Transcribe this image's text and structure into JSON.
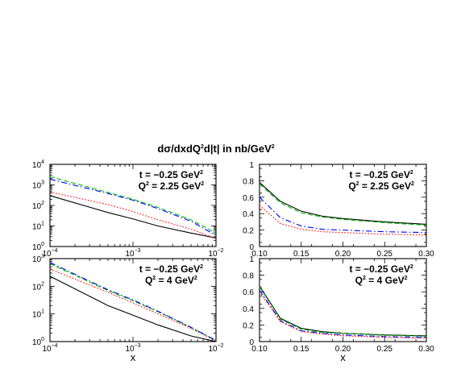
{
  "figure": {
    "title_main": "dσ/dxdQ",
    "title_sup": "2",
    "title_mid": "d|t| in nb/GeV",
    "title_sup2": "2"
  },
  "chart_data": [
    {
      "type": "line",
      "panel": "top-left",
      "xscale": "log",
      "yscale": "log",
      "xlim": [
        0.0001,
        0.01
      ],
      "ylim": [
        1,
        10000
      ],
      "xlabel": "",
      "xticks": [
        {
          "v": 0.0001,
          "b": "10",
          "e": "−4"
        },
        {
          "v": 0.001,
          "b": "10",
          "e": "−3"
        },
        {
          "v": 0.01,
          "b": "10",
          "e": "−2"
        }
      ],
      "yticks": [
        {
          "v": 1,
          "b": "10",
          "e": "0"
        },
        {
          "v": 10,
          "b": "10",
          "e": "1"
        },
        {
          "v": 100,
          "b": "10",
          "e": "2"
        },
        {
          "v": 1000,
          "b": "10",
          "e": "3"
        },
        {
          "v": 10000,
          "b": "10",
          "e": "4"
        }
      ],
      "annotation": {
        "t_main": "t = −0.25 GeV",
        "t_sup": "2",
        "q_pre": "Q",
        "q_sup": "2",
        "q_main": " = 2.25 GeV",
        "q_sup2": "2"
      },
      "series": [
        {
          "color": "#000000",
          "style": "solid",
          "x": [
            0.0001,
            0.0005,
            0.001,
            0.002,
            0.005,
            0.01
          ],
          "y": [
            300,
            45,
            22,
            10,
            4.5,
            2.6
          ]
        },
        {
          "color": "#ff0000",
          "style": "dotted",
          "x": [
            0.0001,
            0.0005,
            0.001,
            0.002,
            0.005,
            0.01
          ],
          "y": [
            450,
            110,
            50,
            20,
            7,
            2.4
          ]
        },
        {
          "color": "#00bb00",
          "style": "dashed",
          "x": [
            0.0001,
            0.0005,
            0.001,
            0.002,
            0.005,
            0.01
          ],
          "y": [
            2500,
            430,
            200,
            80,
            20,
            4.5
          ]
        },
        {
          "color": "#0000ff",
          "style": "dashdot",
          "x": [
            0.0001,
            0.0005,
            0.001,
            0.002,
            0.005,
            0.01
          ],
          "y": [
            1900,
            380,
            180,
            70,
            17,
            3.5
          ]
        }
      ]
    },
    {
      "type": "line",
      "panel": "top-right",
      "xscale": "linear",
      "yscale": "linear",
      "xlim": [
        0.1,
        0.3
      ],
      "ylim": [
        0,
        1
      ],
      "xlabel": "",
      "xticks": [
        {
          "v": 0.1,
          "b": "0.10"
        },
        {
          "v": 0.15,
          "b": "0.15"
        },
        {
          "v": 0.2,
          "b": "0.20"
        },
        {
          "v": 0.25,
          "b": "0.25"
        },
        {
          "v": 0.3,
          "b": "0.30"
        }
      ],
      "yticks": [
        {
          "v": 0,
          "b": "0"
        },
        {
          "v": 0.2,
          "b": "0.2"
        },
        {
          "v": 0.4,
          "b": "0.4"
        },
        {
          "v": 0.6,
          "b": "0.6"
        },
        {
          "v": 0.8,
          "b": "0.8"
        },
        {
          "v": 1,
          "b": "1"
        }
      ],
      "annotation": {
        "t_main": "t = −0.25 GeV",
        "t_sup": "2",
        "q_pre": "Q",
        "q_sup": "2",
        "q_main": " = 2.25 GeV",
        "q_sup2": "2"
      },
      "series": [
        {
          "color": "#000000",
          "style": "solid",
          "x": [
            0.1,
            0.125,
            0.15,
            0.175,
            0.2,
            0.25,
            0.3
          ],
          "y": [
            0.78,
            0.55,
            0.43,
            0.37,
            0.34,
            0.3,
            0.27
          ]
        },
        {
          "color": "#00bb00",
          "style": "dashed",
          "x": [
            0.1,
            0.125,
            0.15,
            0.175,
            0.2,
            0.25,
            0.3
          ],
          "y": [
            0.76,
            0.53,
            0.41,
            0.36,
            0.33,
            0.29,
            0.26
          ]
        },
        {
          "color": "#0000ff",
          "style": "dashdot",
          "x": [
            0.1,
            0.125,
            0.15,
            0.175,
            0.2,
            0.25,
            0.3
          ],
          "y": [
            0.6,
            0.35,
            0.25,
            0.21,
            0.2,
            0.18,
            0.17
          ]
        },
        {
          "color": "#ff0000",
          "style": "dotted",
          "x": [
            0.1,
            0.125,
            0.15,
            0.175,
            0.2,
            0.25,
            0.3
          ],
          "y": [
            0.5,
            0.28,
            0.21,
            0.18,
            0.17,
            0.15,
            0.14
          ]
        }
      ]
    },
    {
      "type": "line",
      "panel": "bottom-left",
      "xscale": "log",
      "yscale": "log",
      "xlim": [
        0.0001,
        0.01
      ],
      "ylim": [
        1,
        1000
      ],
      "xlabel": "x",
      "xticks": [
        {
          "v": 0.0001,
          "b": "10",
          "e": "−4"
        },
        {
          "v": 0.001,
          "b": "10",
          "e": "−3"
        },
        {
          "v": 0.01,
          "b": "10",
          "e": "−2"
        }
      ],
      "yticks": [
        {
          "v": 1,
          "b": "10",
          "e": "0"
        },
        {
          "v": 10,
          "b": "10",
          "e": "1"
        },
        {
          "v": 100,
          "b": "10",
          "e": "2"
        },
        {
          "v": 1000,
          "b": "10",
          "e": "3"
        }
      ],
      "annotation": {
        "t_main": "t = −0.25 GeV",
        "t_sup": "2",
        "q_pre": "Q",
        "q_sup": "2",
        "q_main": " = 4 GeV",
        "q_sup2": "2"
      },
      "series": [
        {
          "color": "#000000",
          "style": "solid",
          "x": [
            0.0001,
            0.0005,
            0.001,
            0.002,
            0.005,
            0.01
          ],
          "y": [
            230,
            20,
            9,
            4,
            1.6,
            1.0
          ]
        },
        {
          "color": "#ff0000",
          "style": "dotted",
          "x": [
            0.0001,
            0.0005,
            0.001,
            0.002,
            0.005,
            0.01
          ],
          "y": [
            420,
            60,
            25,
            10,
            3,
            1.05
          ]
        },
        {
          "color": "#00bb00",
          "style": "dashed",
          "x": [
            0.0001,
            0.0005,
            0.001,
            0.002,
            0.005,
            0.01
          ],
          "y": [
            650,
            70,
            30,
            12,
            3.2,
            1.1
          ]
        },
        {
          "color": "#0000ff",
          "style": "dashdot",
          "x": [
            0.0001,
            0.0005,
            0.001,
            0.002,
            0.005,
            0.01
          ],
          "y": [
            720,
            75,
            32,
            12.5,
            3.3,
            1.1
          ]
        }
      ]
    },
    {
      "type": "line",
      "panel": "bottom-right",
      "xscale": "linear",
      "yscale": "linear",
      "xlim": [
        0.1,
        0.3
      ],
      "ylim": [
        0,
        1
      ],
      "xlabel": "x",
      "xticks": [
        {
          "v": 0.1,
          "b": "0.10"
        },
        {
          "v": 0.15,
          "b": "0.15"
        },
        {
          "v": 0.2,
          "b": "0.20"
        },
        {
          "v": 0.25,
          "b": "0.25"
        },
        {
          "v": 0.3,
          "b": "0.30"
        }
      ],
      "yticks": [
        {
          "v": 0,
          "b": "0"
        },
        {
          "v": 0.2,
          "b": "0.2"
        },
        {
          "v": 0.4,
          "b": "0.4"
        },
        {
          "v": 0.6,
          "b": "0.6"
        },
        {
          "v": 0.8,
          "b": "0.8"
        },
        {
          "v": 1,
          "b": "1"
        }
      ],
      "annotation": {
        "t_main": "t = −0.25 GeV",
        "t_sup": "2",
        "q_pre": "Q",
        "q_sup": "2",
        "q_main": " = 4 GeV",
        "q_sup2": "2"
      },
      "series": [
        {
          "color": "#000000",
          "style": "solid",
          "x": [
            0.1,
            0.125,
            0.15,
            0.175,
            0.2,
            0.25,
            0.3
          ],
          "y": [
            0.67,
            0.28,
            0.16,
            0.12,
            0.1,
            0.08,
            0.07
          ]
        },
        {
          "color": "#00bb00",
          "style": "dashed",
          "x": [
            0.1,
            0.125,
            0.15,
            0.175,
            0.2,
            0.25,
            0.3
          ],
          "y": [
            0.66,
            0.27,
            0.15,
            0.11,
            0.1,
            0.075,
            0.065
          ]
        },
        {
          "color": "#0000ff",
          "style": "dashdot",
          "x": [
            0.1,
            0.125,
            0.15,
            0.175,
            0.2,
            0.25,
            0.3
          ],
          "y": [
            0.62,
            0.25,
            0.13,
            0.1,
            0.08,
            0.06,
            0.05
          ]
        },
        {
          "color": "#ff0000",
          "style": "dotted",
          "x": [
            0.1,
            0.125,
            0.15,
            0.175,
            0.2,
            0.25,
            0.3
          ],
          "y": [
            0.6,
            0.24,
            0.12,
            0.09,
            0.07,
            0.05,
            0.04
          ]
        }
      ]
    }
  ]
}
